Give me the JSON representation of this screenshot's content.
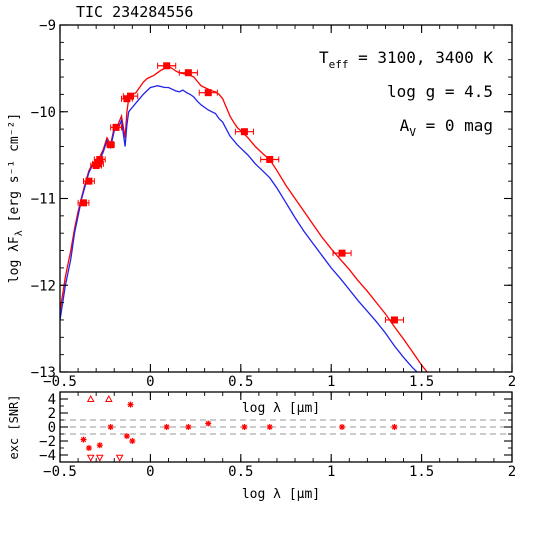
{
  "title": "TIC 234284556",
  "colors": {
    "model_hot": "#ff0000",
    "model_cool": "#2222ee",
    "points": "#ff0000",
    "grid_dash": "#999999",
    "axis": "#000000"
  },
  "chart_data": [
    {
      "type": "line",
      "title": "TIC 234284556",
      "xlabel": "log λ [μm]",
      "ylabel": "log λF_λ [erg s⁻¹ cm⁻²]",
      "xlim": [
        -0.5,
        2
      ],
      "ylim": [
        -13,
        -9
      ],
      "x_ticks": [
        -0.5,
        0,
        0.5,
        1,
        1.5,
        2
      ],
      "x_tick_labels": [
        "−0.5",
        "0",
        "0.5",
        "1",
        "1.5",
        "2"
      ],
      "y_ticks": [
        -13,
        -12,
        -11,
        -10,
        -9
      ],
      "y_tick_labels": [
        "−13",
        "−12",
        "−11",
        "−10",
        "−9"
      ],
      "annotations": [
        {
          "base": "T",
          "sub": "eff",
          "rest": " = 3100, 3400 K"
        },
        {
          "base": "log g = 4.5",
          "sub": "",
          "rest": ""
        },
        {
          "base": "A",
          "sub": "V",
          "rest": " = 0 mag"
        }
      ],
      "series": [
        {
          "color": "#ff0000",
          "x": [
            -0.5,
            -0.47,
            -0.44,
            -0.42,
            -0.4,
            -0.38,
            -0.36,
            -0.34,
            -0.32,
            -0.3,
            -0.28,
            -0.26,
            -0.24,
            -0.22,
            -0.2,
            -0.18,
            -0.16,
            -0.14,
            -0.13,
            -0.12,
            -0.1,
            -0.08,
            -0.06,
            -0.04,
            -0.02,
            0.0,
            0.02,
            0.04,
            0.06,
            0.08,
            0.1,
            0.12,
            0.14,
            0.16,
            0.18,
            0.2,
            0.22,
            0.24,
            0.26,
            0.28,
            0.3,
            0.32,
            0.34,
            0.36,
            0.38,
            0.4,
            0.42,
            0.44,
            0.46,
            0.48,
            0.5,
            0.54,
            0.58,
            0.62,
            0.66,
            0.7,
            0.75,
            0.8,
            0.85,
            0.9,
            0.95,
            1.0,
            1.05,
            1.1,
            1.15,
            1.2,
            1.25,
            1.3,
            1.35,
            1.4,
            1.45,
            1.5,
            1.55
          ],
          "y": [
            -12.3,
            -11.9,
            -11.6,
            -11.35,
            -11.15,
            -10.98,
            -10.82,
            -10.68,
            -10.6,
            -10.55,
            -10.52,
            -10.43,
            -10.3,
            -10.38,
            -10.18,
            -10.15,
            -10.05,
            -10.3,
            -10.0,
            -9.85,
            -9.8,
            -9.78,
            -9.72,
            -9.66,
            -9.62,
            -9.6,
            -9.58,
            -9.55,
            -9.52,
            -9.5,
            -9.48,
            -9.5,
            -9.53,
            -9.55,
            -9.56,
            -9.57,
            -9.58,
            -9.6,
            -9.65,
            -9.7,
            -9.72,
            -9.74,
            -9.76,
            -9.77,
            -9.8,
            -9.85,
            -9.95,
            -10.05,
            -10.12,
            -10.18,
            -10.22,
            -10.3,
            -10.4,
            -10.48,
            -10.55,
            -10.68,
            -10.85,
            -11.0,
            -11.15,
            -11.3,
            -11.45,
            -11.58,
            -11.7,
            -11.82,
            -11.95,
            -12.07,
            -12.2,
            -12.33,
            -12.48,
            -12.62,
            -12.77,
            -12.92,
            -13.05
          ]
        },
        {
          "color": "#2222ee",
          "x": [
            -0.5,
            -0.47,
            -0.44,
            -0.42,
            -0.4,
            -0.38,
            -0.36,
            -0.34,
            -0.32,
            -0.3,
            -0.28,
            -0.26,
            -0.24,
            -0.22,
            -0.2,
            -0.18,
            -0.16,
            -0.14,
            -0.13,
            -0.12,
            -0.1,
            -0.08,
            -0.06,
            -0.04,
            -0.02,
            0.0,
            0.02,
            0.04,
            0.06,
            0.08,
            0.1,
            0.12,
            0.14,
            0.16,
            0.18,
            0.2,
            0.22,
            0.24,
            0.26,
            0.28,
            0.3,
            0.32,
            0.34,
            0.36,
            0.38,
            0.4,
            0.42,
            0.44,
            0.46,
            0.48,
            0.5,
            0.54,
            0.58,
            0.62,
            0.66,
            0.7,
            0.75,
            0.8,
            0.85,
            0.9,
            0.95,
            1.0,
            1.05,
            1.1,
            1.15,
            1.2,
            1.25,
            1.3,
            1.35,
            1.4,
            1.45,
            1.5
          ],
          "y": [
            -12.4,
            -12.0,
            -11.7,
            -11.4,
            -11.2,
            -11.0,
            -10.85,
            -10.7,
            -10.62,
            -10.57,
            -10.55,
            -10.46,
            -10.33,
            -10.41,
            -10.22,
            -10.2,
            -10.1,
            -10.4,
            -10.15,
            -10.0,
            -9.95,
            -9.9,
            -9.85,
            -9.8,
            -9.76,
            -9.72,
            -9.71,
            -9.7,
            -9.71,
            -9.72,
            -9.72,
            -9.74,
            -9.76,
            -9.77,
            -9.75,
            -9.78,
            -9.8,
            -9.83,
            -9.88,
            -9.92,
            -9.95,
            -9.98,
            -10.0,
            -10.02,
            -10.08,
            -10.12,
            -10.2,
            -10.28,
            -10.33,
            -10.38,
            -10.42,
            -10.5,
            -10.6,
            -10.68,
            -10.76,
            -10.88,
            -11.05,
            -11.22,
            -11.38,
            -11.52,
            -11.66,
            -11.8,
            -11.92,
            -12.05,
            -12.18,
            -12.3,
            -12.42,
            -12.55,
            -12.7,
            -12.83,
            -12.95,
            -13.05
          ]
        }
      ],
      "points": {
        "x": [
          -0.37,
          -0.34,
          -0.3,
          -0.29,
          -0.28,
          -0.22,
          -0.19,
          -0.13,
          -0.11,
          0.09,
          0.21,
          0.32,
          0.52,
          0.66,
          1.06,
          1.35
        ],
        "y": [
          -11.05,
          -10.8,
          -10.62,
          -10.6,
          -10.55,
          -10.38,
          -10.18,
          -9.85,
          -9.82,
          -9.47,
          -9.55,
          -9.78,
          -10.23,
          -10.55,
          -11.63,
          -12.4
        ],
        "xerr": [
          0.03,
          0.03,
          0.03,
          0.03,
          0.03,
          0.02,
          0.03,
          0.03,
          0.04,
          0.05,
          0.05,
          0.05,
          0.05,
          0.05,
          0.05,
          0.05
        ]
      }
    },
    {
      "type": "scatter",
      "xlabel": "log λ [μm]",
      "ylabel": "exc [SNR]",
      "inner_label": "log λ [μm]",
      "xlim": [
        -0.5,
        2
      ],
      "ylim": [
        -5,
        5
      ],
      "x_ticks": [
        -0.5,
        0,
        0.5,
        1,
        1.5,
        2
      ],
      "x_tick_labels": [
        "−0.5",
        "0",
        "0.5",
        "1",
        "1.5",
        "2"
      ],
      "y_ticks": [
        -4,
        -2,
        0,
        2,
        4
      ],
      "y_tick_labels": [
        "−4",
        "−2",
        "0",
        "2",
        "4"
      ],
      "dashed_levels": [
        -1,
        0,
        1
      ],
      "points": {
        "x": [
          -0.37,
          -0.34,
          -0.28,
          -0.22,
          -0.13,
          -0.11,
          -0.1,
          0.09,
          0.21,
          0.32,
          0.52,
          0.66,
          1.06,
          1.35
        ],
        "y": [
          -1.8,
          -3.0,
          -2.6,
          0.0,
          -1.3,
          3.2,
          -2.0,
          0.0,
          0.0,
          0.5,
          0.0,
          0.0,
          0.0,
          0.0
        ]
      },
      "upper_limits": {
        "x": [
          -0.33,
          -0.23
        ],
        "y": [
          4.0,
          4.0
        ]
      },
      "lower_limits": {
        "x": [
          -0.33,
          -0.28,
          -0.17
        ],
        "y": [
          -4.4,
          -4.4,
          -4.4
        ]
      }
    }
  ]
}
